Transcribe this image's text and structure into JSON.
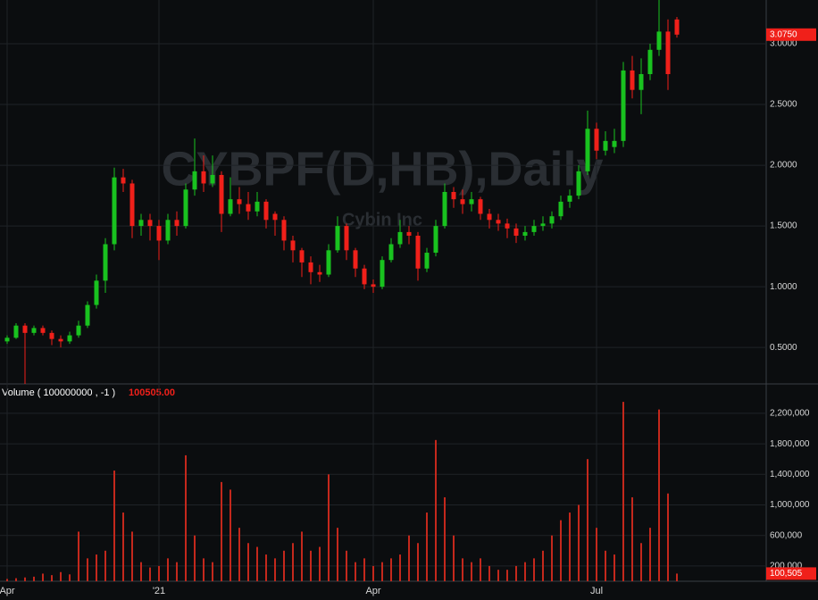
{
  "chart_data": [
    {
      "type": "candlestick",
      "title": "CYBPF(D,HB),Daily",
      "subtitle": "Cybin Inc",
      "up_color": "#19c21f",
      "down_color": "#f0201a",
      "open": [
        0.55,
        0.58,
        0.68,
        0.62,
        0.66,
        0.62,
        0.57,
        0.55,
        0.6,
        0.68,
        0.85,
        1.05,
        1.35,
        1.9,
        1.85,
        1.5,
        1.55,
        1.5,
        1.38,
        1.55,
        1.5,
        1.8,
        1.95,
        1.85,
        1.92,
        1.6,
        1.72,
        1.68,
        1.62,
        1.7,
        1.6,
        1.55,
        1.38,
        1.3,
        1.2,
        1.12,
        1.1,
        1.3,
        1.5,
        1.3,
        1.15,
        1.02,
        1.0,
        1.22,
        1.35,
        1.45,
        1.42,
        1.15,
        1.28,
        1.5,
        1.78,
        1.72,
        1.68,
        1.72,
        1.6,
        1.55,
        1.52,
        1.48,
        1.42,
        1.45,
        1.5,
        1.52,
        1.58,
        1.7,
        1.75,
        1.95,
        2.3,
        2.12,
        2.15,
        2.2,
        2.78,
        2.62,
        2.75,
        2.95,
        3.1,
        3.2
      ],
      "high": [
        0.6,
        0.7,
        0.7,
        0.68,
        0.68,
        0.64,
        0.6,
        0.63,
        0.72,
        0.88,
        1.1,
        1.4,
        1.98,
        1.97,
        1.88,
        1.6,
        1.6,
        1.55,
        1.6,
        1.62,
        1.85,
        2.22,
        2.08,
        2.08,
        1.95,
        1.9,
        1.82,
        1.78,
        1.78,
        1.72,
        1.62,
        1.58,
        1.42,
        1.32,
        1.25,
        1.18,
        1.35,
        1.58,
        1.52,
        1.32,
        1.18,
        1.06,
        1.25,
        1.4,
        1.55,
        1.5,
        1.45,
        1.32,
        1.55,
        1.85,
        1.82,
        1.8,
        1.78,
        1.74,
        1.64,
        1.6,
        1.56,
        1.52,
        1.5,
        1.55,
        1.58,
        1.62,
        1.75,
        1.8,
        2.0,
        2.45,
        2.35,
        2.28,
        2.3,
        2.85,
        2.9,
        2.88,
        3.0,
        3.36,
        3.2,
        3.22
      ],
      "low": [
        0.53,
        0.57,
        0.2,
        0.6,
        0.6,
        0.52,
        0.5,
        0.53,
        0.58,
        0.66,
        0.82,
        0.95,
        1.3,
        1.78,
        1.4,
        1.42,
        1.38,
        1.22,
        1.35,
        1.42,
        1.48,
        1.75,
        1.78,
        1.82,
        1.45,
        1.58,
        1.6,
        1.55,
        1.58,
        1.48,
        1.42,
        1.3,
        1.2,
        1.08,
        1.02,
        1.04,
        1.08,
        1.28,
        1.22,
        1.08,
        0.98,
        0.95,
        0.98,
        1.2,
        1.32,
        1.35,
        1.05,
        1.12,
        1.25,
        1.48,
        1.65,
        1.6,
        1.62,
        1.55,
        1.48,
        1.46,
        1.4,
        1.36,
        1.38,
        1.42,
        1.46,
        1.48,
        1.55,
        1.65,
        1.72,
        1.92,
        2.05,
        2.08,
        2.1,
        2.15,
        2.55,
        2.42,
        2.7,
        2.9,
        2.62,
        3.05
      ],
      "close": [
        0.58,
        0.68,
        0.62,
        0.66,
        0.62,
        0.57,
        0.55,
        0.6,
        0.68,
        0.85,
        1.05,
        1.35,
        1.9,
        1.85,
        1.5,
        1.55,
        1.5,
        1.38,
        1.55,
        1.5,
        1.8,
        1.95,
        1.85,
        1.92,
        1.6,
        1.72,
        1.68,
        1.62,
        1.7,
        1.55,
        1.55,
        1.38,
        1.3,
        1.2,
        1.12,
        1.1,
        1.3,
        1.5,
        1.3,
        1.15,
        1.02,
        1.0,
        1.22,
        1.35,
        1.45,
        1.42,
        1.15,
        1.28,
        1.5,
        1.78,
        1.72,
        1.68,
        1.72,
        1.6,
        1.55,
        1.52,
        1.48,
        1.42,
        1.45,
        1.5,
        1.52,
        1.58,
        1.7,
        1.75,
        1.95,
        2.3,
        2.12,
        2.2,
        2.2,
        2.78,
        2.62,
        2.75,
        2.95,
        3.1,
        2.75,
        3.075
      ],
      "last_value_label": "3.0750",
      "ylim": [
        0.2,
        3.36
      ],
      "yticks": [
        {
          "value": 0.5,
          "label": "0.5000"
        },
        {
          "value": 1,
          "label": "1.0000"
        },
        {
          "value": 1.5,
          "label": "1.5000"
        },
        {
          "value": 2,
          "label": "2.0000"
        },
        {
          "value": 2.5,
          "label": "2.5000"
        },
        {
          "value": 3,
          "label": "3.0000"
        }
      ],
      "xticks": [
        {
          "value": 0,
          "label": "Apr"
        },
        {
          "value": 17,
          "label": "'21"
        },
        {
          "value": 41,
          "label": "Apr"
        },
        {
          "value": 66,
          "label": "Jul"
        }
      ],
      "grid": true
    },
    {
      "type": "bar",
      "title": "Volume ( 100000000 , -1 )",
      "legend_value": "100505.00",
      "color": "#c4281c",
      "values": [
        30000,
        40000,
        50000,
        60000,
        100000,
        80000,
        120000,
        90000,
        650000,
        300000,
        350000,
        400000,
        1450000,
        900000,
        650000,
        250000,
        180000,
        200000,
        300000,
        250000,
        1650000,
        600000,
        300000,
        250000,
        1300000,
        1200000,
        700000,
        500000,
        450000,
        350000,
        300000,
        400000,
        500000,
        650000,
        400000,
        450000,
        1400000,
        700000,
        400000,
        250000,
        300000,
        200000,
        250000,
        300000,
        350000,
        600000,
        500000,
        900000,
        1850000,
        1100000,
        600000,
        300000,
        250000,
        300000,
        200000,
        150000,
        150000,
        200000,
        250000,
        300000,
        400000,
        600000,
        800000,
        900000,
        1000000,
        1600000,
        700000,
        400000,
        350000,
        2350000,
        1100000,
        500000,
        700000,
        2250000,
        1150000,
        100505
      ],
      "last_value_label": "100,505",
      "ylim": [
        0,
        2585000
      ],
      "yticks": [
        {
          "value": 200000,
          "label": "200,000"
        },
        {
          "value": 600000,
          "label": "600,000"
        },
        {
          "value": 1000000,
          "label": "1,000,000"
        },
        {
          "value": 1400000,
          "label": "1,400,000"
        },
        {
          "value": 1800000,
          "label": "1,800,000"
        },
        {
          "value": 2200000,
          "label": "2,200,000"
        }
      ],
      "grid": true
    }
  ]
}
